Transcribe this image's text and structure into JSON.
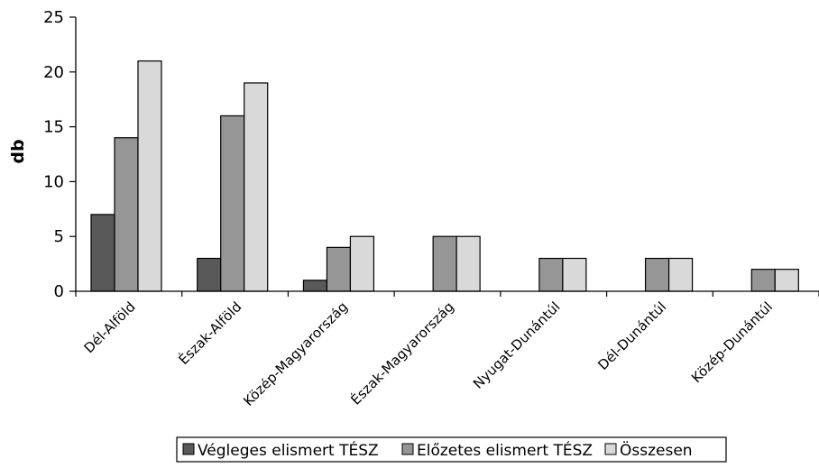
{
  "chart_data": {
    "type": "bar",
    "title": "",
    "xlabel": "",
    "ylabel": "db",
    "ylim": [
      0,
      25
    ],
    "yticks": [
      "0",
      "5",
      "10",
      "15",
      "20",
      "25"
    ],
    "grid": false,
    "legend_position": "bottom",
    "categories": [
      "Dél-Alföld",
      "Észak-Alföld",
      "Közép-Magyarország",
      "Észak-Magyarország",
      "Nyugat-Dunántúl",
      "Dél-Dunántúl",
      "Közép-Dunántúl"
    ],
    "series": [
      {
        "name": "Végleges elismert TÉSZ",
        "color": "#595959",
        "values": [
          7,
          3,
          1,
          0,
          0,
          0,
          0
        ]
      },
      {
        "name": "Előzetes elismert TÉSZ",
        "color": "#969696",
        "values": [
          14,
          16,
          4,
          5,
          3,
          3,
          2
        ]
      },
      {
        "name": "Összesen",
        "color": "#d9d9d9",
        "values": [
          21,
          19,
          5,
          5,
          3,
          3,
          2
        ]
      }
    ]
  }
}
